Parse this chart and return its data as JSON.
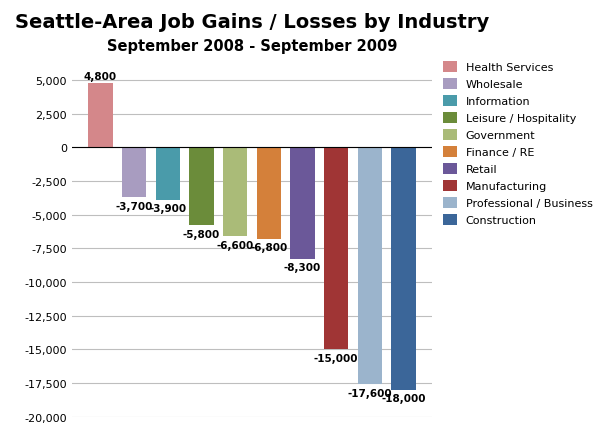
{
  "title": "Seattle-Area Job Gains / Losses by Industry",
  "subtitle": "September 2008 - September 2009",
  "categories": [
    "Health Services",
    "Wholesale",
    "Information",
    "Leisure / Hospitality",
    "Government",
    "Finance / RE",
    "Retail",
    "Manufacturing",
    "Professional / Business",
    "Construction"
  ],
  "values": [
    4800,
    -3700,
    -3900,
    -5800,
    -6600,
    -6800,
    -8300,
    -15000,
    -17600,
    -18000
  ],
  "colors": [
    "#D4878A",
    "#A89CC0",
    "#4A9BAA",
    "#6B8C3A",
    "#AABB78",
    "#D4803A",
    "#6B5899",
    "#A03535",
    "#9BB4CC",
    "#3B6699"
  ],
  "ylim": [
    -20000,
    6500
  ],
  "yticks": [
    -20000,
    -17500,
    -15000,
    -12500,
    -10000,
    -7500,
    -5000,
    -2500,
    0,
    2500,
    5000
  ],
  "ytick_labels": [
    "-20,000",
    "-17,500",
    "-15,000",
    "-12,500",
    "-10,000",
    "-7,500",
    "-5,000",
    "-2,500",
    "0",
    "2,500",
    "5,000"
  ],
  "bar_labels": [
    "4,800",
    "-3,700",
    "-3,900",
    "-5,800",
    "-6,600",
    "-6,800",
    "-8,300",
    "-15,000",
    "-17,600",
    "-18,000"
  ],
  "legend_labels": [
    "Health Services",
    "Wholesale",
    "Information",
    "Leisure / Hospitality",
    "Government",
    "Finance / RE",
    "Retail",
    "Manufacturing",
    "Professional / Business",
    "Construction"
  ],
  "background_color": "#FFFFFF",
  "grid_color": "#BEBEBE",
  "title_fontsize": 14,
  "subtitle_fontsize": 10.5,
  "label_fontsize": 7.5,
  "ytick_fontsize": 8,
  "legend_fontsize": 8
}
